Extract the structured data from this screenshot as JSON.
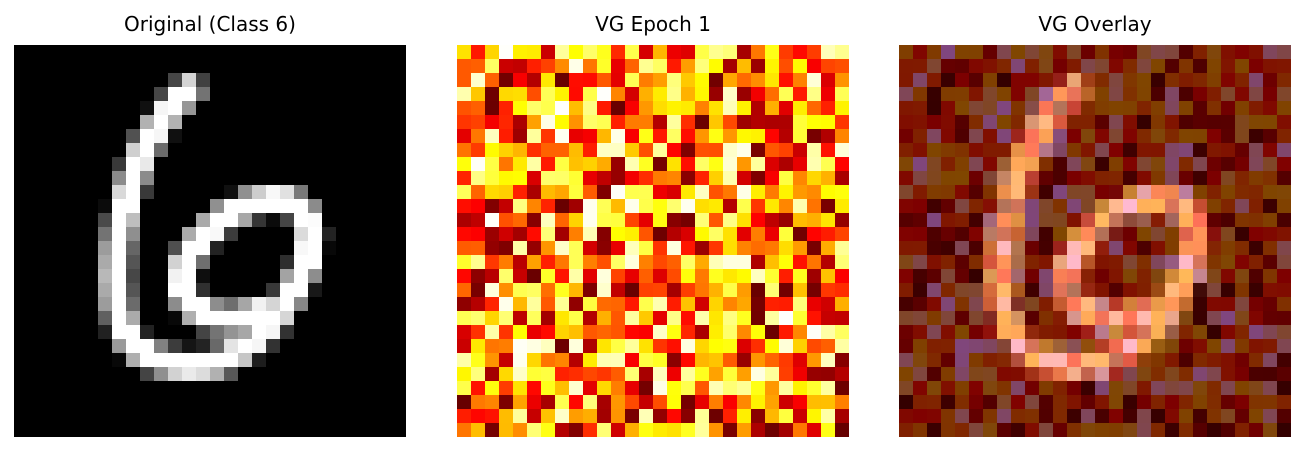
{
  "panels": [
    {
      "title": "Original (Class 6)",
      "kind": "digit-grayscale"
    },
    {
      "title": "VG Epoch 1",
      "kind": "heatmap-noise"
    },
    {
      "title": "VG Overlay",
      "kind": "overlay"
    }
  ],
  "colors": {
    "background": "#ffffff",
    "digit_bg": "#000000",
    "digit_fg": "#ffffff"
  },
  "colormap": "hot",
  "grid_size": 28
}
